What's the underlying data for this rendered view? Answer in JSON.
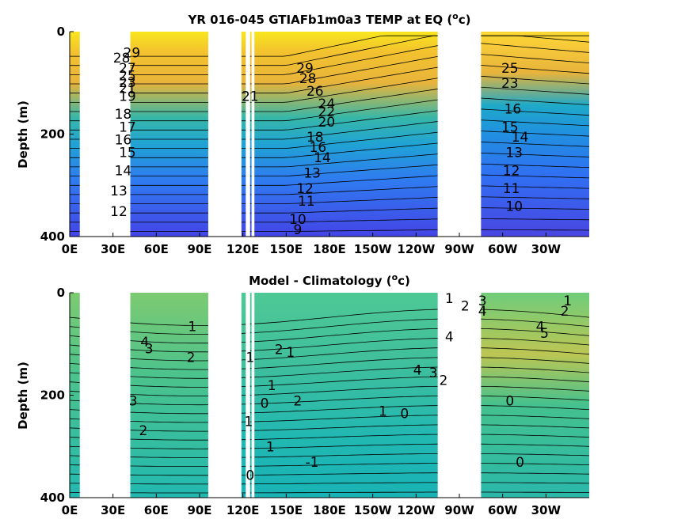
{
  "chart_data": [
    {
      "type": "heatmap",
      "title": "YR 016-045 GTIAFb1m0a3 TEMP at EQ (",
      "title_unit_sup": "o",
      "title_unit_tail": "c)",
      "ylabel": "Depth (m)",
      "xlabel": "",
      "xticks": [
        "0E",
        "30E",
        "60E",
        "90E",
        "120E",
        "150E",
        "180E",
        "150W",
        "120W",
        "90W",
        "60W",
        "30W"
      ],
      "yticks": [
        "0",
        "200",
        "400"
      ],
      "xlim": [
        0,
        360
      ],
      "ylim": [
        400,
        0
      ],
      "colormap": "parula",
      "clim": [
        8,
        30
      ],
      "contour_labels": [
        {
          "text": "29",
          "lon": 43,
          "depth": 50
        },
        {
          "text": "28",
          "lon": 36,
          "depth": 60
        },
        {
          "text": "27",
          "lon": 40,
          "depth": 80
        },
        {
          "text": "25",
          "lon": 40,
          "depth": 95
        },
        {
          "text": "23",
          "lon": 40,
          "depth": 108
        },
        {
          "text": "21",
          "lon": 40,
          "depth": 120
        },
        {
          "text": "19",
          "lon": 40,
          "depth": 135
        },
        {
          "text": "18",
          "lon": 37,
          "depth": 170
        },
        {
          "text": "17",
          "lon": 40,
          "depth": 195
        },
        {
          "text": "16",
          "lon": 37,
          "depth": 220
        },
        {
          "text": "15",
          "lon": 40,
          "depth": 245
        },
        {
          "text": "14",
          "lon": 37,
          "depth": 280
        },
        {
          "text": "13",
          "lon": 34,
          "depth": 320
        },
        {
          "text": "12",
          "lon": 34,
          "depth": 360
        },
        {
          "text": "29",
          "lon": 163,
          "depth": 80
        },
        {
          "text": "28",
          "lon": 165,
          "depth": 100
        },
        {
          "text": "26",
          "lon": 170,
          "depth": 125
        },
        {
          "text": "24",
          "lon": 178,
          "depth": 150
        },
        {
          "text": "22",
          "lon": 178,
          "depth": 165
        },
        {
          "text": "20",
          "lon": 178,
          "depth": 185
        },
        {
          "text": "18",
          "lon": 170,
          "depth": 215
        },
        {
          "text": "16",
          "lon": 172,
          "depth": 235
        },
        {
          "text": "14",
          "lon": 175,
          "depth": 255
        },
        {
          "text": "13",
          "lon": 168,
          "depth": 285
        },
        {
          "text": "12",
          "lon": 163,
          "depth": 315
        },
        {
          "text": "11",
          "lon": 164,
          "depth": 340
        },
        {
          "text": "10",
          "lon": 158,
          "depth": 375
        },
        {
          "text": "9",
          "lon": 158,
          "depth": 395
        },
        {
          "text": "21",
          "lon": 125,
          "depth": 135
        },
        {
          "text": "25",
          "lon": 305,
          "depth": 80
        },
        {
          "text": "23",
          "lon": 305,
          "depth": 110
        },
        {
          "text": "16",
          "lon": 307,
          "depth": 160
        },
        {
          "text": "15",
          "lon": 305,
          "depth": 195
        },
        {
          "text": "14",
          "lon": 312,
          "depth": 215
        },
        {
          "text": "13",
          "lon": 308,
          "depth": 245
        },
        {
          "text": "12",
          "lon": 306,
          "depth": 280
        },
        {
          "text": "11",
          "lon": 306,
          "depth": 315
        },
        {
          "text": "10",
          "lon": 308,
          "depth": 350
        }
      ],
      "land_gaps": [
        [
          7,
          42
        ],
        [
          96,
          119
        ],
        [
          122,
          125
        ],
        [
          126,
          128
        ],
        [
          255,
          285
        ]
      ]
    },
    {
      "type": "heatmap",
      "title": "Model - Climatology (",
      "title_unit_sup": "o",
      "title_unit_tail": "c)",
      "ylabel": "Depth (m)",
      "xlabel": "",
      "xticks": [
        "0E",
        "30E",
        "60E",
        "90E",
        "120E",
        "150E",
        "180E",
        "150W",
        "120W",
        "90W",
        "60W",
        "30W"
      ],
      "yticks": [
        "0",
        "200",
        "400"
      ],
      "xlim": [
        0,
        360
      ],
      "ylim": [
        400,
        0
      ],
      "colormap": "parula",
      "clim": [
        -4,
        6
      ],
      "contour_labels": [
        {
          "text": "1",
          "lon": 85,
          "depth": 75
        },
        {
          "text": "4",
          "lon": 52,
          "depth": 105
        },
        {
          "text": "3",
          "lon": 55,
          "depth": 118
        },
        {
          "text": "2",
          "lon": 84,
          "depth": 135
        },
        {
          "text": "3",
          "lon": 44,
          "depth": 220
        },
        {
          "text": "2",
          "lon": 51,
          "depth": 278
        },
        {
          "text": "1",
          "lon": 125,
          "depth": 135
        },
        {
          "text": "2",
          "lon": 145,
          "depth": 120
        },
        {
          "text": "1",
          "lon": 153,
          "depth": 125
        },
        {
          "text": "1",
          "lon": 140,
          "depth": 190
        },
        {
          "text": "2",
          "lon": 158,
          "depth": 220
        },
        {
          "text": "0",
          "lon": 135,
          "depth": 225
        },
        {
          "text": "1",
          "lon": 124,
          "depth": 260
        },
        {
          "text": "1",
          "lon": 139,
          "depth": 310
        },
        {
          "text": "0",
          "lon": 125,
          "depth": 365
        },
        {
          "text": "-1",
          "lon": 168,
          "depth": 340
        },
        {
          "text": "1",
          "lon": 263,
          "depth": 20
        },
        {
          "text": "2",
          "lon": 274,
          "depth": 35
        },
        {
          "text": "3",
          "lon": 286,
          "depth": 25
        },
        {
          "text": "4",
          "lon": 286,
          "depth": 45
        },
        {
          "text": "4",
          "lon": 263,
          "depth": 95
        },
        {
          "text": "4",
          "lon": 241,
          "depth": 160
        },
        {
          "text": "3",
          "lon": 252,
          "depth": 165
        },
        {
          "text": "2",
          "lon": 259,
          "depth": 180
        },
        {
          "text": "1",
          "lon": 217,
          "depth": 240
        },
        {
          "text": "0",
          "lon": 232,
          "depth": 245
        },
        {
          "text": "1",
          "lon": 345,
          "depth": 25
        },
        {
          "text": "2",
          "lon": 343,
          "depth": 45
        },
        {
          "text": "4",
          "lon": 326,
          "depth": 75
        },
        {
          "text": "5",
          "lon": 329,
          "depth": 88
        },
        {
          "text": "0",
          "lon": 305,
          "depth": 220
        },
        {
          "text": "0",
          "lon": 312,
          "depth": 340
        }
      ],
      "land_gaps": [
        [
          7,
          42
        ],
        [
          96,
          119
        ],
        [
          122,
          125
        ],
        [
          126,
          128
        ],
        [
          255,
          285
        ]
      ]
    }
  ]
}
